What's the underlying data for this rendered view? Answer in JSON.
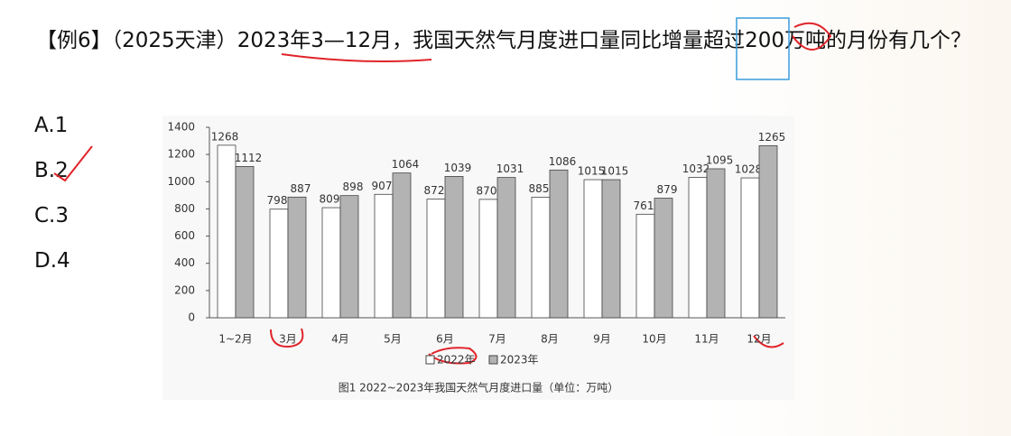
{
  "question": {
    "label": "【例6】",
    "source": "（2025天津）",
    "text": "2023年3—12月，我国天然气月度进口量同比增量超过200万吨的月份有几个？"
  },
  "options": [
    "A.1",
    "B.2",
    "C.3",
    "D.4"
  ],
  "chart_data": {
    "type": "bar",
    "caption": "图1  2022~2023年我国天然气月度进口量（单位：万吨）",
    "categories": [
      "1~2月",
      "3月",
      "4月",
      "5月",
      "6月",
      "7月",
      "8月",
      "9月",
      "10月",
      "11月",
      "12月"
    ],
    "series": [
      {
        "name": "2022年",
        "color": "#ffffff",
        "values": [
          1268,
          798,
          809,
          907,
          872,
          870,
          885,
          1015,
          761,
          1032,
          1028
        ]
      },
      {
        "name": "2023年",
        "color": "#b3b3b3",
        "values": [
          1112,
          887,
          898,
          1064,
          1039,
          1031,
          1086,
          1015,
          879,
          1095,
          1265
        ]
      }
    ],
    "ylim": [
      0,
      1400
    ],
    "yticks": [
      0,
      200,
      400,
      600,
      800,
      1000,
      1200,
      1400
    ],
    "grid": false,
    "legend": "bottom"
  }
}
